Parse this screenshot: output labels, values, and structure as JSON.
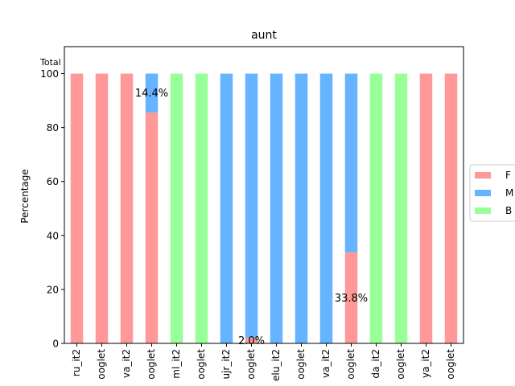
{
  "chart_data": {
    "type": "bar",
    "stacked": true,
    "title": "aunt",
    "xlabel": "",
    "ylabel": "Percentage",
    "ylim": [
      0,
      110
    ],
    "yticks": [
      0,
      20,
      40,
      60,
      80,
      100
    ],
    "corner_label": "Total",
    "grid": false,
    "legend_placement": "right",
    "categories": [
      "ru_it2",
      "ooglet",
      "va_it2",
      "ooglet",
      "ml_it2",
      "ooglet",
      "ujr_it2",
      "ooglet",
      "elu_it2",
      "ooglet",
      "va_it2",
      "ooglet",
      "da_it2",
      "ooglet",
      "ya_it2",
      "ooglet"
    ],
    "series": [
      {
        "name": "F",
        "color": "#ff9999",
        "values": [
          100,
          100,
          100,
          85.6,
          0,
          0,
          0,
          2.0,
          0,
          0,
          0,
          33.8,
          0,
          0,
          100,
          100
        ]
      },
      {
        "name": "M",
        "color": "#66b3ff",
        "values": [
          0,
          0,
          0,
          14.4,
          0,
          0,
          100,
          98.0,
          100,
          100,
          100,
          66.2,
          0,
          0,
          0,
          0
        ]
      },
      {
        "name": "B",
        "color": "#99ff99",
        "values": [
          0,
          0,
          0,
          0,
          100,
          100,
          0,
          0,
          0,
          0,
          0,
          0,
          100,
          100,
          0,
          0
        ]
      }
    ],
    "annotations": [
      {
        "text": "14.4%",
        "category_index": 3,
        "y": 92.8
      },
      {
        "text": "2.0%",
        "category_index": 7,
        "y": 1.0
      },
      {
        "text": "33.8%",
        "category_index": 11,
        "y": 16.9
      }
    ]
  }
}
